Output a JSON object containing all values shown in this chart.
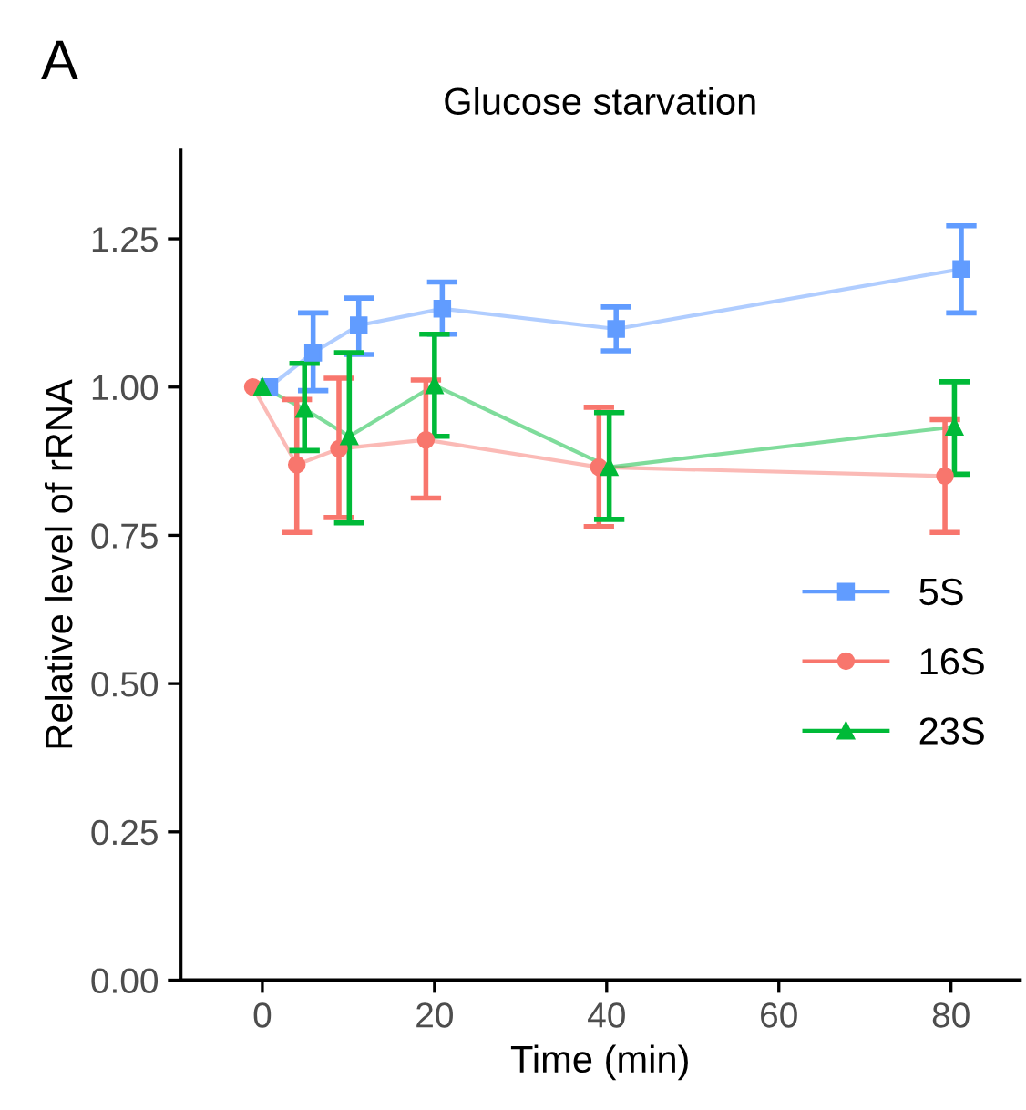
{
  "chart_data": {
    "type": "line",
    "title": "Glucose starvation",
    "xlabel": "Time (min)",
    "ylabel": "Relative level of rRNA",
    "annotations": [
      "A"
    ],
    "xlim": [
      -9.5,
      88
    ],
    "xticks": [
      0,
      20,
      40,
      60,
      80
    ],
    "ylim": [
      0,
      1.4
    ],
    "yticks": [
      {
        "value": 0,
        "label": "0.00"
      },
      {
        "value": 0.25,
        "label": "0.25"
      },
      {
        "value": 0.5,
        "label": "0.50"
      },
      {
        "value": 0.75,
        "label": "0.75"
      },
      {
        "value": 1,
        "label": "1.00"
      },
      {
        "value": 1.25,
        "label": "1.25"
      }
    ],
    "grid": false,
    "legend": "right",
    "series": [
      {
        "name": "5S",
        "color": "#619cff",
        "marker": "square",
        "x": [
          0.8,
          5.9,
          11.2,
          20.9,
          41.1,
          81.2
        ],
        "values": [
          1.0,
          1.058,
          1.104,
          1.132,
          1.098,
          1.199
        ],
        "errors": [
          null,
          [
            0.994,
            1.125
          ],
          [
            1.055,
            1.15
          ],
          [
            1.089,
            1.177
          ],
          [
            1.061,
            1.135
          ],
          [
            1.125,
            1.272
          ]
        ]
      },
      {
        "name": "16S",
        "color": "#f8766d",
        "marker": "circle",
        "x": [
          -1.1,
          4.0,
          8.9,
          19.0,
          39.1,
          79.3
        ],
        "values": [
          1.0,
          0.869,
          0.896,
          0.911,
          0.865,
          0.85
        ],
        "errors": [
          null,
          [
            0.755,
            0.979
          ],
          [
            0.78,
            1.015
          ],
          [
            0.813,
            1.012
          ],
          [
            0.765,
            0.966
          ],
          [
            0.755,
            0.945
          ]
        ]
      },
      {
        "name": "23S",
        "color": "#00ba38",
        "marker": "triangle",
        "x": [
          0,
          4.9,
          10.1,
          20.0,
          40.3,
          80.4
        ],
        "values": [
          1.0,
          0.963,
          0.917,
          1.003,
          0.865,
          0.933
        ],
        "errors": [
          null,
          [
            0.893,
            1.04
          ],
          [
            0.771,
            1.058
          ],
          [
            0.917,
            1.089
          ],
          [
            0.777,
            0.957
          ],
          [
            0.853,
            1.009
          ]
        ]
      }
    ]
  }
}
